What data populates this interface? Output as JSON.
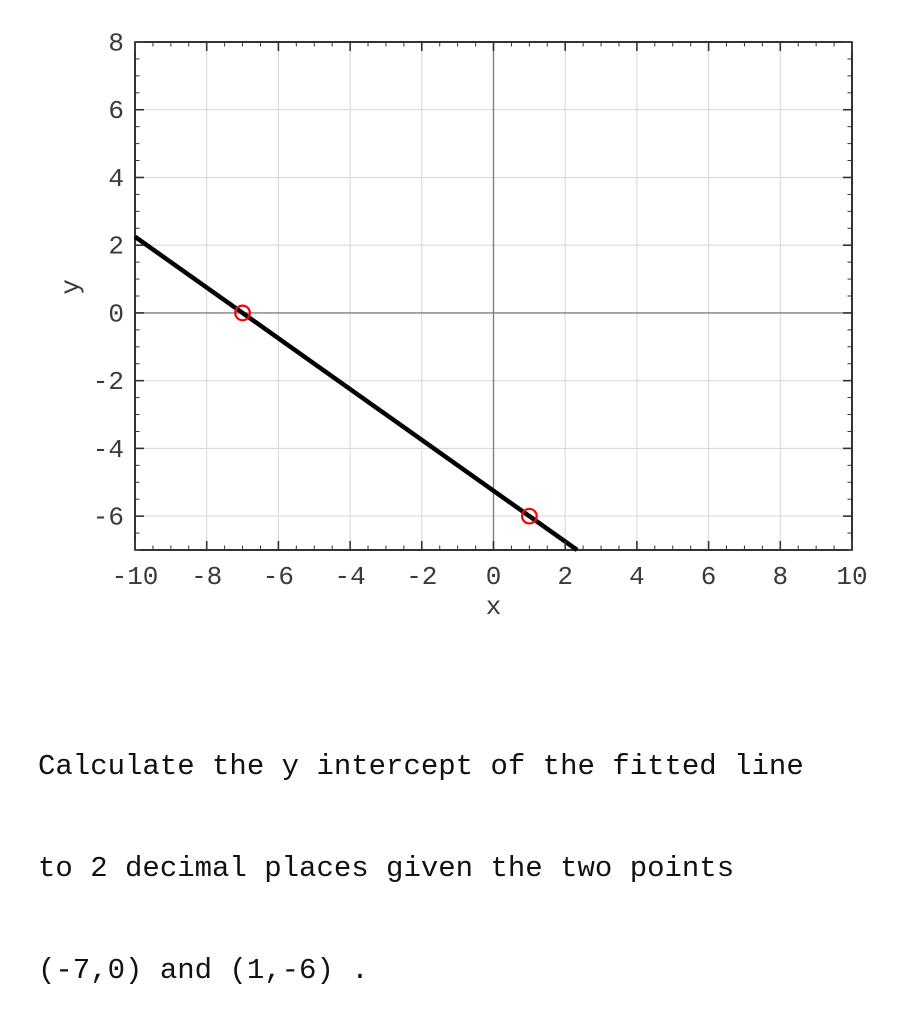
{
  "chart_data": {
    "type": "line",
    "title": "",
    "xlabel": "x",
    "ylabel": "y",
    "xlim": [
      -10,
      10
    ],
    "ylim": [
      -7,
      8
    ],
    "x_major_ticks": [
      -10,
      -8,
      -6,
      -4,
      -2,
      0,
      2,
      4,
      6,
      8,
      10
    ],
    "y_major_ticks": [
      -6,
      -4,
      -2,
      0,
      2,
      4,
      6,
      8
    ],
    "minor_tick_step": 0.5,
    "grid": true,
    "zero_axis_lines": true,
    "legend": "none",
    "series": [
      {
        "name": "fitted-line",
        "kind": "line",
        "slope": -0.75,
        "y_intercept": -5.25,
        "endpoints": [
          [
            -10,
            2.25
          ],
          [
            2.3333,
            -7
          ]
        ],
        "color": "#000000"
      },
      {
        "name": "data-points",
        "kind": "scatter",
        "values": [
          [
            -7,
            0
          ],
          [
            1,
            -6
          ]
        ],
        "marker": "open-circle",
        "color": "#f40505"
      }
    ],
    "colors": {
      "background": "#ffffff",
      "spine": "#000000",
      "grid": "#d9d9d9",
      "zero_line": "#808080",
      "tick": "#333333",
      "tick_label": "#3a3a3a"
    }
  },
  "question": {
    "lines": [
      "Calculate the y intercept of the fitted line",
      "to 2 decimal places given the two points",
      "(-7,0) and (1,-6) ."
    ]
  }
}
